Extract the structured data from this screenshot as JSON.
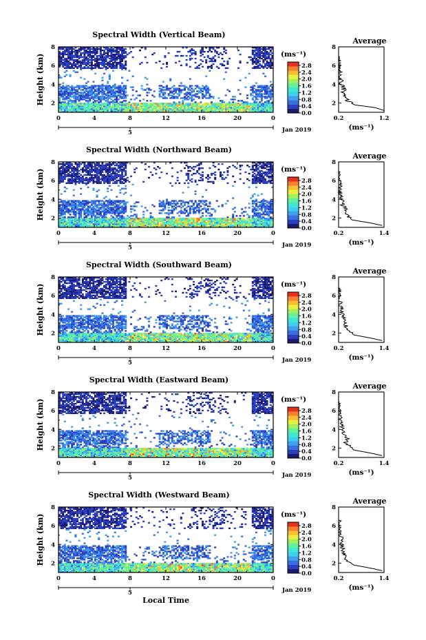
{
  "chart_data": [
    {
      "type": "heatmap",
      "title": "Spectral Width (Vertical Beam)",
      "ylabel": "Height (km)",
      "ylim": [
        1,
        8
      ],
      "yticks": [
        "2",
        "4",
        "6",
        "8"
      ],
      "xlim": [
        0,
        24
      ],
      "xticks": [
        "0",
        "4",
        "8",
        "12",
        "16",
        "20",
        "0"
      ],
      "secondary_tick": "5",
      "date_label": "Jan 2019",
      "colorbar": {
        "unit": "(ms⁻¹)",
        "ticks": [
          "0.0",
          "0.4",
          "0.8",
          "1.2",
          "1.6",
          "2.0",
          "2.4",
          "2.8"
        ],
        "range": [
          0,
          3.0
        ]
      },
      "average": {
        "title": "Average",
        "xlabel": "(ms⁻¹)",
        "xticks": [
          "0.2",
          "1.2"
        ],
        "xlim": [
          0.2,
          1.2
        ],
        "ylim": [
          1,
          8
        ],
        "yticks": [
          "2",
          "4",
          "6",
          "8"
        ],
        "profile": [
          [
            1.2,
            1.2
          ],
          [
            1.0,
            1.5
          ],
          [
            0.55,
            1.8
          ],
          [
            0.4,
            2.2
          ],
          [
            0.35,
            2.6
          ],
          [
            0.3,
            3.0
          ],
          [
            0.32,
            3.4
          ],
          [
            0.28,
            3.8
          ],
          [
            0.25,
            4.2
          ],
          [
            0.24,
            4.6
          ],
          [
            0.22,
            5.0
          ],
          [
            0.23,
            5.4
          ],
          [
            0.21,
            5.8
          ],
          [
            0.2,
            6.2
          ],
          [
            0.21,
            6.6
          ],
          [
            0.2,
            7.0
          ]
        ]
      }
    },
    {
      "type": "heatmap",
      "title": "Spectral Width (Northward Beam)",
      "ylabel": "Height (km)",
      "ylim": [
        1,
        8
      ],
      "yticks": [
        "2",
        "4",
        "6",
        "8"
      ],
      "xlim": [
        0,
        24
      ],
      "xticks": [
        "0",
        "4",
        "8",
        "12",
        "16",
        "20",
        "0"
      ],
      "secondary_tick": "5",
      "date_label": "Jan 2019",
      "colorbar": {
        "unit": "(ms⁻¹)",
        "ticks": [
          "0.0",
          "0.4",
          "0.8",
          "1.2",
          "1.6",
          "2.0",
          "2.4",
          "2.8"
        ],
        "range": [
          0,
          3.0
        ]
      },
      "average": {
        "title": "Average",
        "xlabel": "(ms⁻¹)",
        "xticks": [
          "0.2",
          "1.4"
        ],
        "xlim": [
          0.2,
          1.4
        ],
        "ylim": [
          1,
          8
        ],
        "yticks": [
          "2",
          "4",
          "6",
          "8"
        ],
        "profile": [
          [
            1.35,
            1.2
          ],
          [
            1.0,
            1.5
          ],
          [
            0.55,
            1.8
          ],
          [
            0.45,
            2.2
          ],
          [
            0.35,
            2.6
          ],
          [
            0.4,
            3.0
          ],
          [
            0.3,
            3.4
          ],
          [
            0.33,
            3.8
          ],
          [
            0.27,
            4.2
          ],
          [
            0.25,
            4.6
          ],
          [
            0.22,
            5.0
          ],
          [
            0.24,
            5.4
          ],
          [
            0.21,
            5.8
          ],
          [
            0.2,
            6.2
          ],
          [
            0.21,
            6.6
          ],
          [
            0.2,
            7.0
          ]
        ]
      }
    },
    {
      "type": "heatmap",
      "title": "Spectral Width (Southward Beam)",
      "ylabel": "Height (km)",
      "ylim": [
        1,
        8
      ],
      "yticks": [
        "2",
        "4",
        "6",
        "8"
      ],
      "xlim": [
        0,
        24
      ],
      "xticks": [
        "0",
        "4",
        "8",
        "12",
        "16",
        "20",
        "0"
      ],
      "secondary_tick": "5",
      "date_label": "Jan 2019",
      "colorbar": {
        "unit": "(ms⁻¹)",
        "ticks": [
          "0.0",
          "0.4",
          "0.8",
          "1.2",
          "1.6",
          "2.0",
          "2.4",
          "2.8"
        ],
        "range": [
          0,
          3.0
        ]
      },
      "average": {
        "title": "Average",
        "xlabel": "(ms⁻¹)",
        "xticks": [
          "0.2",
          "1.4"
        ],
        "xlim": [
          0.2,
          1.4
        ],
        "ylim": [
          1,
          8
        ],
        "yticks": [
          "2",
          "4",
          "6",
          "8"
        ],
        "profile": [
          [
            1.35,
            1.2
          ],
          [
            1.0,
            1.5
          ],
          [
            0.6,
            1.8
          ],
          [
            0.5,
            2.2
          ],
          [
            0.4,
            2.6
          ],
          [
            0.38,
            3.0
          ],
          [
            0.35,
            3.4
          ],
          [
            0.33,
            3.8
          ],
          [
            0.28,
            4.2
          ],
          [
            0.3,
            4.6
          ],
          [
            0.25,
            5.0
          ],
          [
            0.23,
            5.4
          ],
          [
            0.22,
            5.8
          ],
          [
            0.2,
            6.2
          ],
          [
            0.21,
            6.6
          ],
          [
            0.2,
            7.0
          ]
        ]
      }
    },
    {
      "type": "heatmap",
      "title": "Spectral Width (Eastward Beam)",
      "ylabel": "Height (km)",
      "ylim": [
        1,
        8
      ],
      "yticks": [
        "2",
        "4",
        "6",
        "8"
      ],
      "xlim": [
        0,
        24
      ],
      "xticks": [
        "0",
        "4",
        "8",
        "12",
        "16",
        "20",
        "0"
      ],
      "secondary_tick": "5",
      "date_label": "Jan 2019",
      "colorbar": {
        "unit": "(ms⁻¹)",
        "ticks": [
          "0.0",
          "0.4",
          "0.8",
          "1.2",
          "1.6",
          "2.0",
          "2.4",
          "2.8"
        ],
        "range": [
          0,
          3.0
        ]
      },
      "average": {
        "title": "Average",
        "xlabel": "(ms⁻¹)",
        "xticks": [
          "0.2",
          "1.4"
        ],
        "xlim": [
          0.2,
          1.4
        ],
        "ylim": [
          1,
          8
        ],
        "yticks": [
          "2",
          "4",
          "6",
          "8"
        ],
        "profile": [
          [
            1.35,
            1.2
          ],
          [
            1.0,
            1.5
          ],
          [
            0.6,
            1.8
          ],
          [
            0.5,
            2.2
          ],
          [
            0.38,
            2.6
          ],
          [
            0.42,
            3.0
          ],
          [
            0.32,
            3.4
          ],
          [
            0.35,
            3.8
          ],
          [
            0.27,
            4.2
          ],
          [
            0.28,
            4.6
          ],
          [
            0.22,
            5.0
          ],
          [
            0.24,
            5.4
          ],
          [
            0.21,
            5.8
          ],
          [
            0.2,
            6.2
          ],
          [
            0.21,
            6.6
          ],
          [
            0.2,
            7.0
          ]
        ]
      }
    },
    {
      "type": "heatmap",
      "title": "Spectral Width (Westward Beam)",
      "ylabel": "Height (km)",
      "ylim": [
        1,
        8
      ],
      "yticks": [
        "2",
        "4",
        "6",
        "8"
      ],
      "xlim": [
        0,
        24
      ],
      "xticks": [
        "0",
        "4",
        "8",
        "12",
        "16",
        "20",
        "0"
      ],
      "secondary_tick": "5",
      "date_label": "Jan 2019",
      "xlabel": "Local Time",
      "colorbar": {
        "unit": "(ms⁻¹)",
        "ticks": [
          "0.0",
          "0.4",
          "0.8",
          "1.2",
          "1.6",
          "2.0",
          "2.4",
          "2.8"
        ],
        "range": [
          0,
          3.0
        ]
      },
      "average": {
        "title": "Average",
        "xlabel": "(ms⁻¹)",
        "xticks": [
          "0.2",
          "1.4"
        ],
        "xlim": [
          0.2,
          1.4
        ],
        "ylim": [
          1,
          8
        ],
        "yticks": [
          "2",
          "4",
          "6",
          "8"
        ],
        "profile": [
          [
            1.35,
            1.2
          ],
          [
            1.0,
            1.5
          ],
          [
            0.6,
            1.8
          ],
          [
            0.45,
            2.2
          ],
          [
            0.38,
            2.6
          ],
          [
            0.35,
            3.0
          ],
          [
            0.32,
            3.4
          ],
          [
            0.3,
            3.8
          ],
          [
            0.26,
            4.2
          ],
          [
            0.28,
            4.6
          ],
          [
            0.23,
            5.0
          ],
          [
            0.22,
            5.4
          ],
          [
            0.21,
            5.8
          ],
          [
            0.2,
            6.2
          ],
          [
            0.21,
            6.6
          ],
          [
            0.2,
            7.0
          ]
        ]
      }
    }
  ],
  "colors": {
    "colormap": [
      "#1a1a6e",
      "#2b3fbf",
      "#3a6fe0",
      "#3fa0f0",
      "#3fd0f0",
      "#40e8d0",
      "#60f0a0",
      "#a0f060",
      "#e8f040",
      "#f8c030",
      "#f88030",
      "#e83020"
    ]
  }
}
